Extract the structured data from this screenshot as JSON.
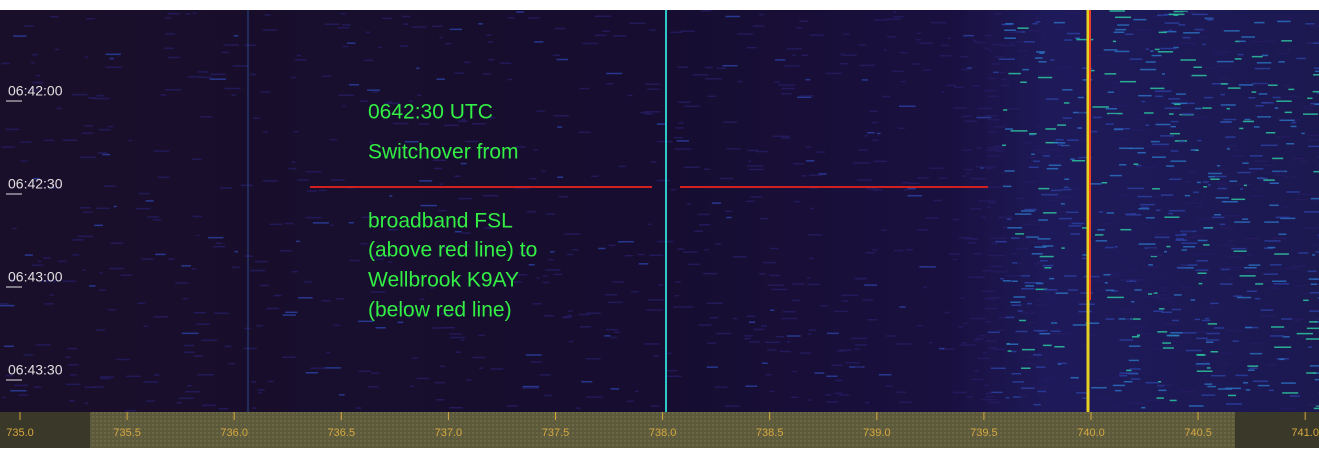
{
  "time_labels": [
    "06:42:00",
    "06:42:30",
    "06:43:00",
    "06:43:30"
  ],
  "frequency_labels": [
    "735.0",
    "735.5",
    "736.0",
    "736.5",
    "737.0",
    "737.5",
    "738.0",
    "738.5",
    "739.0",
    "739.5",
    "740.0",
    "740.5",
    "741.0"
  ],
  "annotation": [
    "0642:30 UTC",
    "Switchover from",
    "broadband FSL",
    "(above red line) to",
    "Wellbrook K9AY",
    "(below red line)"
  ]
}
